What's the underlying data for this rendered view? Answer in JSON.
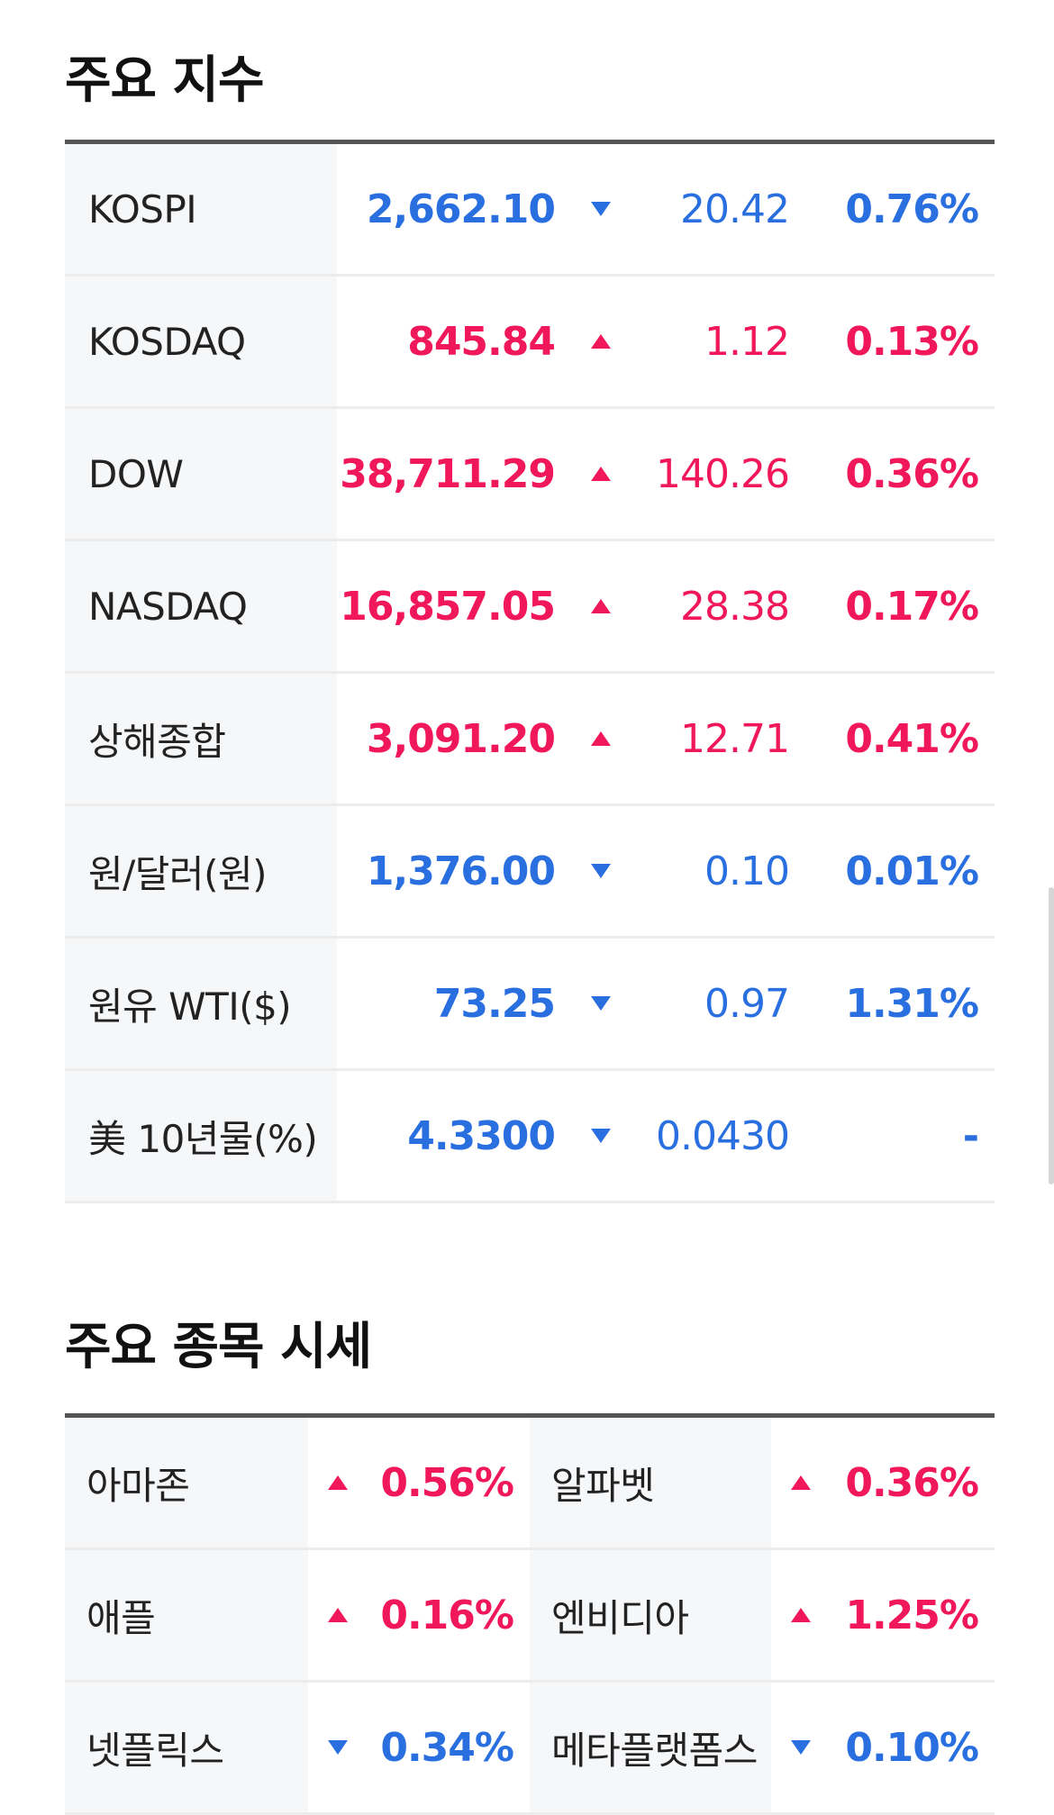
{
  "indices": {
    "title": "주요 지수",
    "rows": [
      {
        "name": "KOSPI",
        "value": "2,662.10",
        "dir": "down",
        "change": "20.42",
        "pct": "0.76%"
      },
      {
        "name": "KOSDAQ",
        "value": "845.84",
        "dir": "up",
        "change": "1.12",
        "pct": "0.13%"
      },
      {
        "name": "DOW",
        "value": "38,711.29",
        "dir": "up",
        "change": "140.26",
        "pct": "0.36%"
      },
      {
        "name": "NASDAQ",
        "value": "16,857.05",
        "dir": "up",
        "change": "28.38",
        "pct": "0.17%"
      },
      {
        "name": "상해종합",
        "value": "3,091.20",
        "dir": "up",
        "change": "12.71",
        "pct": "0.41%"
      },
      {
        "name": "원/달러(원)",
        "value": "1,376.00",
        "dir": "down",
        "change": "0.10",
        "pct": "0.01%"
      },
      {
        "name": "원유 WTI($)",
        "value": "73.25",
        "dir": "down",
        "change": "0.97",
        "pct": "1.31%"
      },
      {
        "name": "美 10년물(%)",
        "value": "4.3300",
        "dir": "down",
        "change": "0.0430",
        "pct": "-"
      }
    ]
  },
  "stocks": {
    "title": "주요 종목 시세",
    "rows": [
      [
        {
          "name": "아마존",
          "dir": "up",
          "pct": "0.56%"
        },
        {
          "name": "알파벳",
          "dir": "up",
          "pct": "0.36%"
        }
      ],
      [
        {
          "name": "애플",
          "dir": "up",
          "pct": "0.16%"
        },
        {
          "name": "엔비디아",
          "dir": "up",
          "pct": "1.25%"
        }
      ],
      [
        {
          "name": "넷플릭스",
          "dir": "down",
          "pct": "0.34%"
        },
        {
          "name": "메타플랫폼스",
          "dir": "down",
          "pct": "0.10%"
        }
      ]
    ]
  },
  "colors": {
    "up": "#f0185a",
    "down": "#2a6fe0",
    "name_bg": "#f6f7f9",
    "divider": "#ececec",
    "header_rule": "#555555"
  },
  "icons": {
    "up": "triangle-up-icon",
    "down": "triangle-down-icon"
  }
}
